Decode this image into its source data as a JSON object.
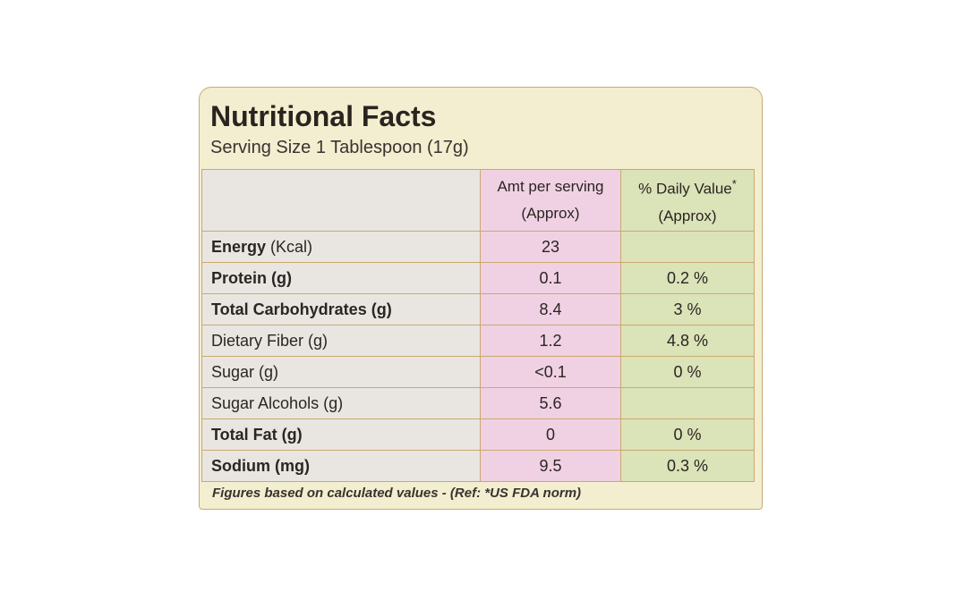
{
  "header": {
    "title": "Nutritional Facts",
    "serving": "Serving Size 1 Tablespoon (17g)"
  },
  "table": {
    "columns": [
      {
        "line1": "Amt per serving",
        "line2": "(Approx)"
      },
      {
        "line1": "% Daily Value",
        "mark": "*",
        "line2": "(Approx)"
      }
    ],
    "rows": [
      {
        "label": "Energy",
        "unit": "(Kcal)",
        "bold": true,
        "amount": "23",
        "daily": null
      },
      {
        "label": "Protein (g)",
        "bold": true,
        "amount": "0.1",
        "daily": "0.2 %"
      },
      {
        "label": "Total Carbohydrates (g)",
        "bold": true,
        "amount": "8.4",
        "daily": "3 %"
      },
      {
        "label": "Dietary Fiber (g)",
        "bold": false,
        "amount": "1.2",
        "daily": "4.8 %"
      },
      {
        "label": "Sugar (g)",
        "bold": false,
        "amount": "<0.1",
        "daily": "0 %"
      },
      {
        "label": "Sugar Alcohols (g)",
        "bold": false,
        "amount": "5.6",
        "daily": null
      },
      {
        "label": "Total Fat (g)",
        "bold": true,
        "amount": "0",
        "daily": "0 %"
      },
      {
        "label": "Sodium (mg)",
        "bold": true,
        "amount": "9.5",
        "daily": "0.3 %"
      }
    ]
  },
  "footer": {
    "note": "Figures based on calculated values - (Ref: *US FDA norm)"
  }
}
